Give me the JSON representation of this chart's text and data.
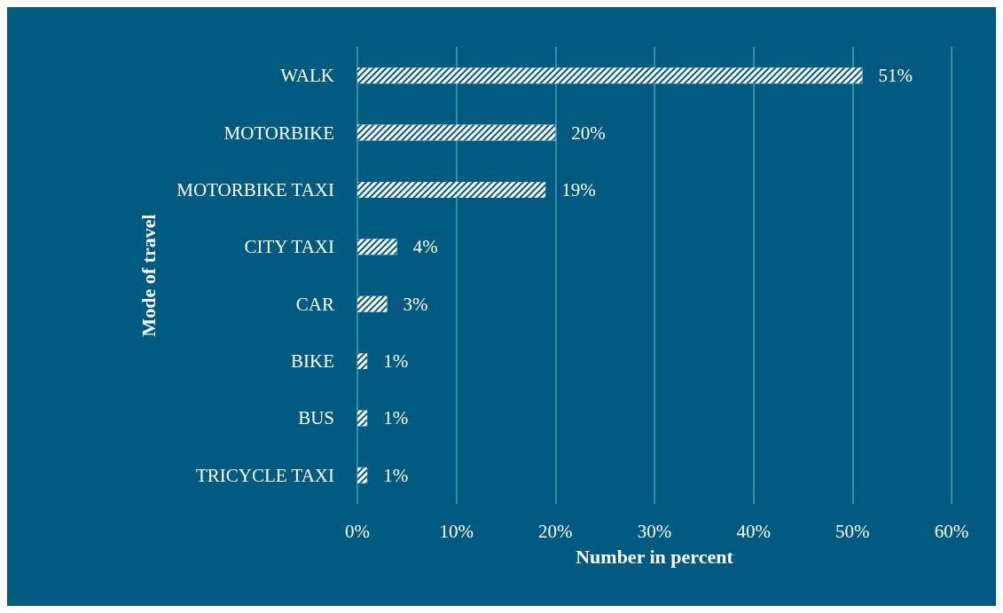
{
  "chart_data": {
    "type": "bar",
    "orientation": "horizontal",
    "xlabel": "Number in percent",
    "ylabel": "Mode of travel",
    "categories": [
      "WALK",
      "MOTORBIKE",
      "MOTORBIKE TAXI",
      "CITY TAXI",
      "CAR",
      "BIKE",
      "BUS",
      "TRICYCLE TAXI"
    ],
    "values": [
      51,
      20,
      19,
      4,
      3,
      1,
      1,
      1
    ],
    "value_labels": [
      "51%",
      "20%",
      "19%",
      "4%",
      "3%",
      "1%",
      "1%",
      "1%"
    ],
    "color": "#ffffff",
    "xlim": [
      0,
      60
    ],
    "xticks": [
      {
        "value": 0,
        "label": "0%"
      },
      {
        "value": 10,
        "label": "10%"
      },
      {
        "value": 20,
        "label": "20%"
      },
      {
        "value": 30,
        "label": "30%"
      },
      {
        "value": 40,
        "label": "40%"
      },
      {
        "value": 50,
        "label": "50%"
      },
      {
        "value": 60,
        "label": "60%"
      }
    ],
    "grid": "x"
  }
}
